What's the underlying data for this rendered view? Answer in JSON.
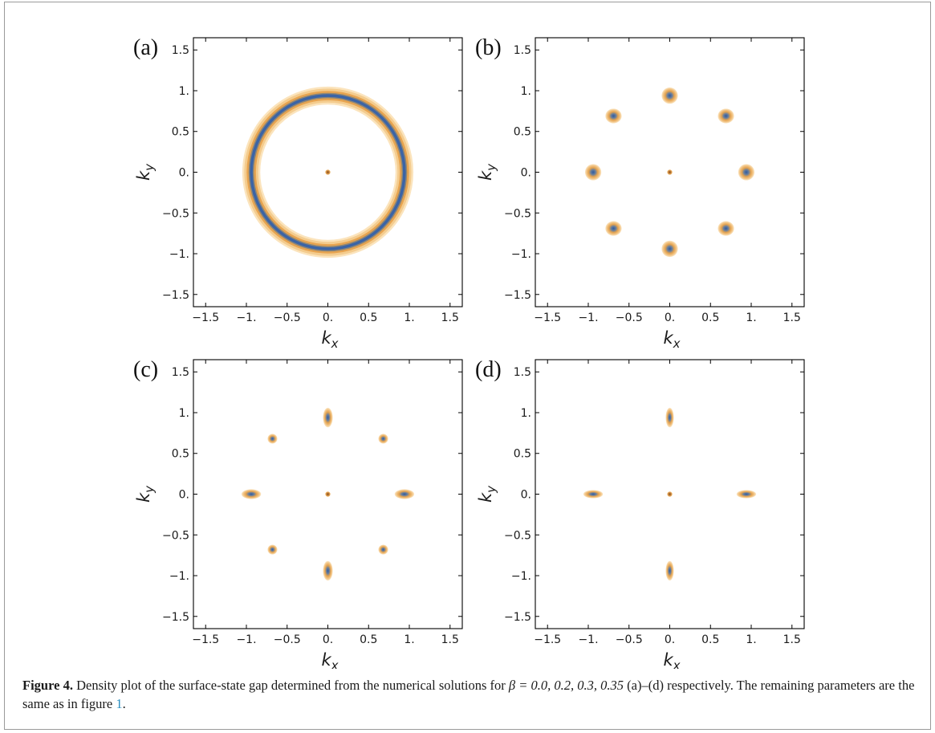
{
  "figure": {
    "x_label": "k",
    "x_label_sub": "x",
    "y_label": "k",
    "y_label_sub": "y",
    "colors": {
      "outer": "#f6d69f",
      "mid": "#e9a552",
      "core": "#3b64a6",
      "frame": "#000000"
    }
  },
  "chart_data": [
    {
      "type": "heatmap",
      "panel_label": "(a)",
      "xlim": [
        -1.65,
        1.65
      ],
      "ylim": [
        -1.65,
        1.65
      ],
      "x_ticks": [
        -1.5,
        -1.0,
        -0.5,
        0.0,
        0.5,
        1.0,
        1.5
      ],
      "x_tick_labels": [
        "−1.5",
        "−1.",
        "−0.5",
        "0.",
        "0.5",
        "1.",
        "1.5"
      ],
      "y_ticks": [
        1.5,
        1.0,
        0.5,
        0.0,
        -0.5,
        -1.0,
        -1.5
      ],
      "y_tick_labels": [
        "1.5",
        "1.",
        "0.5",
        "0.",
        "−0.5",
        "−1.",
        "−1.5"
      ],
      "ring": {
        "radius": 0.94,
        "width": 0.22
      },
      "center_dot": [
        0,
        0
      ],
      "pockets": []
    },
    {
      "type": "heatmap",
      "panel_label": "(b)",
      "xlim": [
        -1.65,
        1.65
      ],
      "ylim": [
        -1.65,
        1.65
      ],
      "x_ticks": [
        -1.5,
        -1.0,
        -0.5,
        0.0,
        0.5,
        1.0,
        1.5
      ],
      "x_tick_labels": [
        "−1.5",
        "−1.",
        "−0.5",
        "0.",
        "0.5",
        "1.",
        "1.5"
      ],
      "y_ticks": [
        1.5,
        1.0,
        0.5,
        0.0,
        -0.5,
        -1.0,
        -1.5
      ],
      "y_tick_labels": [
        "1.5",
        "1.",
        "0.5",
        "0.",
        "−0.5",
        "−1.",
        "−1.5"
      ],
      "center_dot": [
        0,
        0
      ],
      "pockets": [
        {
          "x": 0.0,
          "y": 0.94,
          "rx": 0.1,
          "ry": 0.1
        },
        {
          "x": 0.0,
          "y": -0.94,
          "rx": 0.1,
          "ry": 0.1
        },
        {
          "x": 0.94,
          "y": 0.0,
          "rx": 0.1,
          "ry": 0.1
        },
        {
          "x": -0.94,
          "y": 0.0,
          "rx": 0.1,
          "ry": 0.1
        },
        {
          "x": 0.69,
          "y": 0.69,
          "rx": 0.1,
          "ry": 0.09
        },
        {
          "x": -0.69,
          "y": 0.69,
          "rx": 0.1,
          "ry": 0.09
        },
        {
          "x": 0.69,
          "y": -0.69,
          "rx": 0.1,
          "ry": 0.09
        },
        {
          "x": -0.69,
          "y": -0.69,
          "rx": 0.1,
          "ry": 0.09
        }
      ]
    },
    {
      "type": "heatmap",
      "panel_label": "(c)",
      "xlim": [
        -1.65,
        1.65
      ],
      "ylim": [
        -1.65,
        1.65
      ],
      "x_ticks": [
        -1.5,
        -1.0,
        -0.5,
        0.0,
        0.5,
        1.0,
        1.5
      ],
      "x_tick_labels": [
        "−1.5",
        "−1.",
        "−0.5",
        "0.",
        "0.5",
        "1.",
        "1.5"
      ],
      "y_ticks": [
        1.5,
        1.0,
        0.5,
        0.0,
        -0.5,
        -1.0,
        -1.5
      ],
      "y_tick_labels": [
        "1.5",
        "1.",
        "0.5",
        "0.",
        "−0.5",
        "−1.",
        "−1.5"
      ],
      "center_dot": [
        0,
        0
      ],
      "pockets": [
        {
          "x": 0.0,
          "y": 0.94,
          "rx": 0.06,
          "ry": 0.12
        },
        {
          "x": 0.0,
          "y": -0.94,
          "rx": 0.06,
          "ry": 0.12
        },
        {
          "x": 0.94,
          "y": 0.0,
          "rx": 0.12,
          "ry": 0.06
        },
        {
          "x": -0.94,
          "y": 0.0,
          "rx": 0.12,
          "ry": 0.06
        },
        {
          "x": 0.68,
          "y": 0.68,
          "rx": 0.06,
          "ry": 0.06
        },
        {
          "x": -0.68,
          "y": 0.68,
          "rx": 0.06,
          "ry": 0.06
        },
        {
          "x": 0.68,
          "y": -0.68,
          "rx": 0.06,
          "ry": 0.06
        },
        {
          "x": -0.68,
          "y": -0.68,
          "rx": 0.06,
          "ry": 0.06
        }
      ]
    },
    {
      "type": "heatmap",
      "panel_label": "(d)",
      "xlim": [
        -1.65,
        1.65
      ],
      "ylim": [
        -1.65,
        1.65
      ],
      "x_ticks": [
        -1.5,
        -1.0,
        -0.5,
        0.0,
        0.5,
        1.0,
        1.5
      ],
      "x_tick_labels": [
        "−1.5",
        "−1.",
        "−0.5",
        "0.",
        "0.5",
        "1.",
        "1.5"
      ],
      "y_ticks": [
        1.5,
        1.0,
        0.5,
        0.0,
        -0.5,
        -1.0,
        -1.5
      ],
      "y_tick_labels": [
        "1.5",
        "1.",
        "0.5",
        "0.",
        "−0.5",
        "−1.",
        "−1.5"
      ],
      "center_dot": [
        0,
        0
      ],
      "pockets": [
        {
          "x": 0.0,
          "y": 0.94,
          "rx": 0.05,
          "ry": 0.12
        },
        {
          "x": 0.0,
          "y": -0.94,
          "rx": 0.05,
          "ry": 0.12
        },
        {
          "x": 0.94,
          "y": 0.0,
          "rx": 0.12,
          "ry": 0.05
        },
        {
          "x": -0.94,
          "y": 0.0,
          "rx": 0.12,
          "ry": 0.05
        }
      ]
    }
  ],
  "caption": {
    "label": "Figure 4.",
    "text_part1": "Density plot of the surface-state gap determined from the numerical solutions for ",
    "beta_expr": "β = 0.0, 0.2, 0.3, 0.35",
    "text_part2": " (a)–(d) respectively. The remaining parameters are the same as in figure ",
    "ref": "1",
    "text_end": "."
  }
}
